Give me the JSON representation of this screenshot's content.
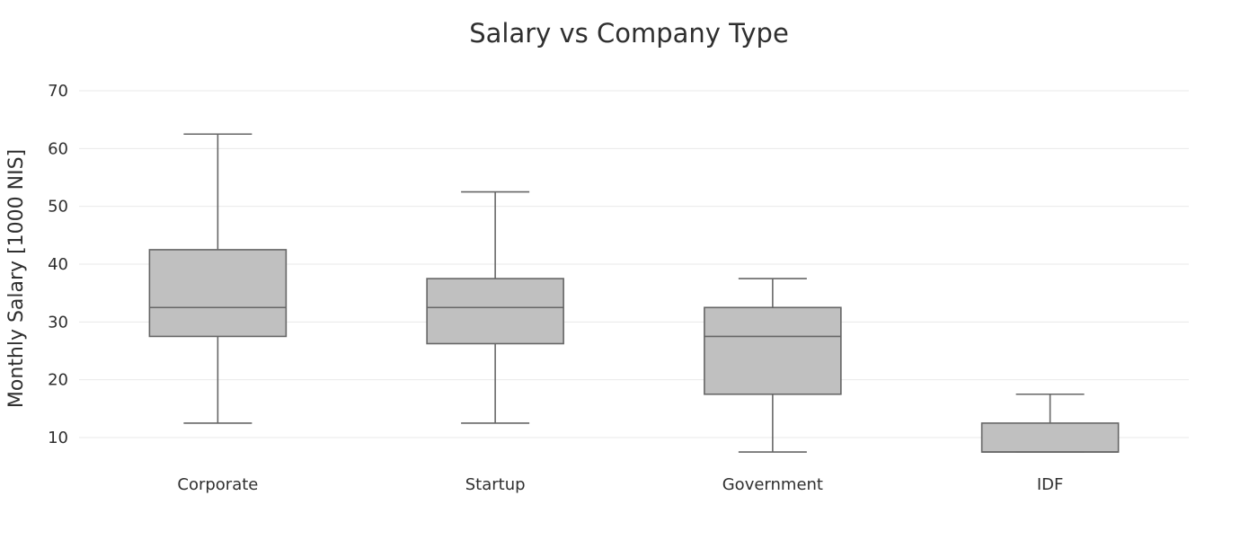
{
  "chart_data": {
    "type": "box",
    "title": "Salary vs Company Type",
    "xlabel": "",
    "ylabel": "Monthly Salary [1000 NIS]",
    "ylim": [
      5,
      72
    ],
    "yticks": [
      10,
      20,
      30,
      40,
      50,
      60,
      70
    ],
    "grid": true,
    "categories": [
      "Corporate",
      "Startup",
      "Government",
      "IDF"
    ],
    "boxes": [
      {
        "category": "Corporate",
        "min": 12.5,
        "q1": 27.5,
        "median": 32.5,
        "q3": 42.5,
        "max": 62.5
      },
      {
        "category": "Startup",
        "min": 12.5,
        "q1": 26.25,
        "median": 32.5,
        "q3": 37.5,
        "max": 52.5
      },
      {
        "category": "Government",
        "min": 7.5,
        "q1": 17.5,
        "median": 27.5,
        "q3": 32.5,
        "max": 37.5
      },
      {
        "category": "IDF",
        "min": 7.5,
        "q1": 7.5,
        "median": 7.5,
        "q3": 12.5,
        "max": 17.5
      }
    ],
    "colors": {
      "box_fill": "#c0c0c0",
      "box_line": "#666666"
    }
  }
}
